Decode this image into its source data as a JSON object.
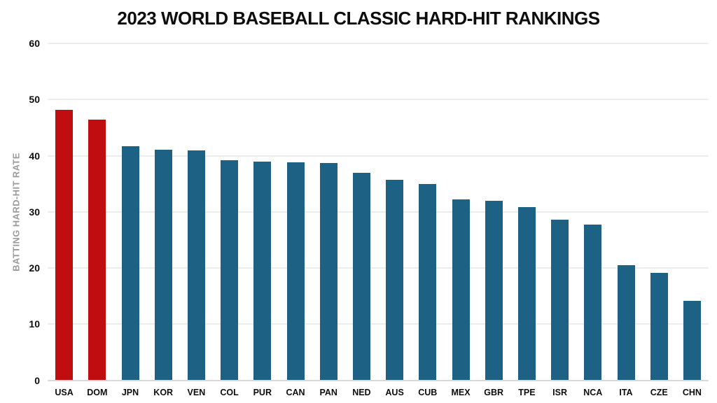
{
  "page": {
    "background": "#FFFFFF"
  },
  "chart_data": {
    "type": "bar",
    "title": "2023 WORLD BASEBALL CLASSIC HARD-HIT RANKINGS",
    "xlabel": "",
    "ylabel": "BATTING HARD-HIT RATE",
    "ylim": [
      0,
      60
    ],
    "ytick_step": 10,
    "ytick_labels": [
      "0",
      "10",
      "20",
      "30",
      "40",
      "50",
      "60"
    ],
    "grid": "horizontal",
    "legend": "none",
    "categories": [
      "USA",
      "DOM",
      "JPN",
      "KOR",
      "VEN",
      "COL",
      "PUR",
      "CAN",
      "PAN",
      "NED",
      "AUS",
      "CUB",
      "MEX",
      "GBR",
      "TPE",
      "ISR",
      "NCA",
      "ITA",
      "CZE",
      "CHN"
    ],
    "values": [
      48.2,
      46.4,
      41.7,
      41.1,
      40.9,
      39.2,
      39.0,
      38.8,
      38.7,
      37.0,
      35.7,
      34.9,
      32.2,
      32.0,
      30.9,
      28.6,
      27.7,
      20.5,
      19.1,
      14.2
    ],
    "highlight_indices": [
      0,
      1
    ],
    "bar_colors": {
      "highlight": "#C00D10",
      "default": "#1D6284"
    },
    "axis_text_color": "#0D0D0D",
    "ylabel_color": "#9B9B9B",
    "gridline_color": "#ECECEC",
    "baseline_color": "#D9D9D9"
  }
}
